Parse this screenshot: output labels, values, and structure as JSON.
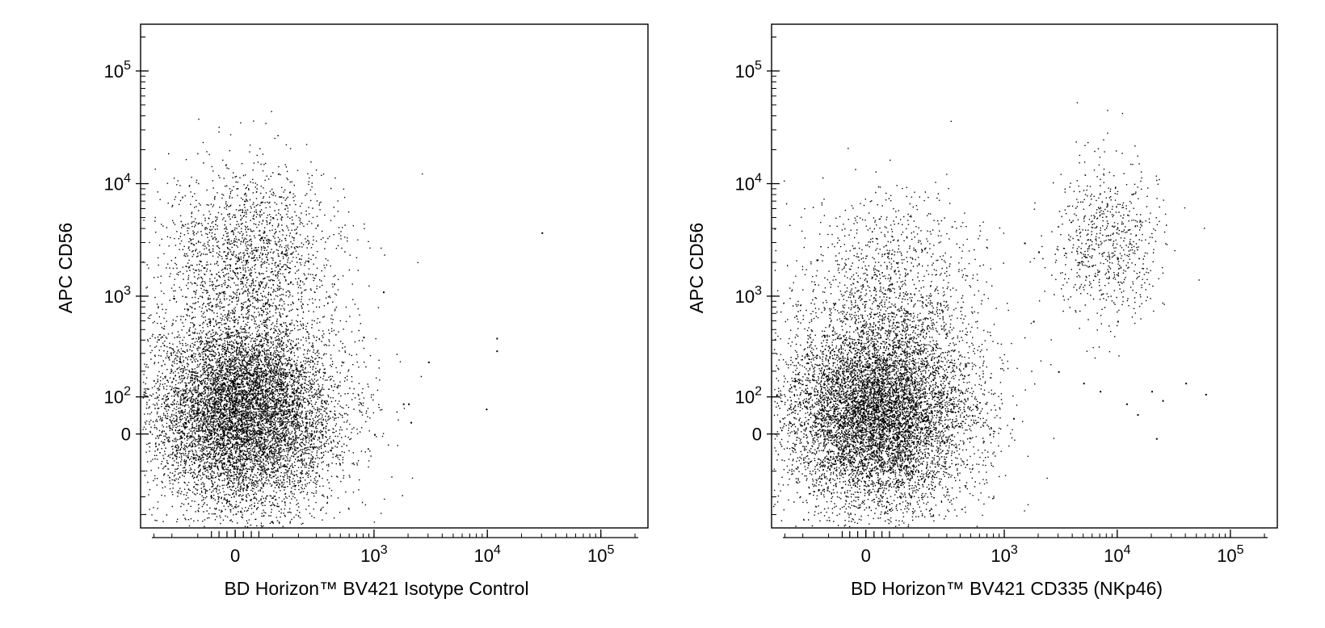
{
  "chart_data": [
    {
      "type": "scatter",
      "title": "",
      "xlabel": "BD Horizon™ BV421 Isotype Control",
      "ylabel": "APC CD56",
      "scale": "biexponential (log-like with linear region around 0)",
      "x_ticks": [
        {
          "value": 0,
          "mantissa": "0",
          "exp": ""
        },
        {
          "value": 1000,
          "mantissa": "10",
          "exp": "3"
        },
        {
          "value": 10000,
          "mantissa": "10",
          "exp": "4"
        },
        {
          "value": 100000,
          "mantissa": "10",
          "exp": "5"
        }
      ],
      "y_ticks": [
        {
          "value": 0,
          "mantissa": "0",
          "exp": ""
        },
        {
          "value": 100,
          "mantissa": "10",
          "exp": "2"
        },
        {
          "value": 1000,
          "mantissa": "10",
          "exp": "3"
        },
        {
          "value": 10000,
          "mantissa": "10",
          "exp": "4"
        },
        {
          "value": 100000,
          "mantissa": "10",
          "exp": "5"
        }
      ],
      "clusters": [
        {
          "name": "",
          "x_center": 20,
          "y_center": 60,
          "count": 9000,
          "density": "dense"
        },
        {
          "name": "",
          "x_center": 30,
          "y_center": 2500,
          "count": 1700,
          "density": "sparse"
        }
      ],
      "outliers": [
        {
          "x": 1200,
          "y": 1100
        },
        {
          "x": 1800,
          "y": 80
        },
        {
          "x": 2000,
          "y": 80
        },
        {
          "x": 2100,
          "y": 30
        },
        {
          "x": 3000,
          "y": 250
        },
        {
          "x": 9700,
          "y": 65
        },
        {
          "x": 12000,
          "y": 420
        },
        {
          "x": 12000,
          "y": 320
        },
        {
          "x": 30000,
          "y": 3700
        },
        {
          "x": 800,
          "y": 430
        },
        {
          "x": 1000,
          "y": 0
        }
      ]
    },
    {
      "type": "scatter",
      "title": "",
      "xlabel": "BD Horizon™ BV421 CD335 (NKp46)",
      "ylabel": "APC CD56",
      "scale": "biexponential (log-like with linear region around 0)",
      "x_ticks": [
        {
          "value": 0,
          "mantissa": "0",
          "exp": ""
        },
        {
          "value": 1000,
          "mantissa": "10",
          "exp": "3"
        },
        {
          "value": 10000,
          "mantissa": "10",
          "exp": "4"
        },
        {
          "value": 100000,
          "mantissa": "10",
          "exp": "5"
        }
      ],
      "y_ticks": [
        {
          "value": 0,
          "mantissa": "0",
          "exp": ""
        },
        {
          "value": 100,
          "mantissa": "10",
          "exp": "2"
        },
        {
          "value": 1000,
          "mantissa": "10",
          "exp": "3"
        },
        {
          "value": 10000,
          "mantissa": "10",
          "exp": "4"
        },
        {
          "value": 100000,
          "mantissa": "10",
          "exp": "5"
        }
      ],
      "clusters": [
        {
          "name": "",
          "x_center": 30,
          "y_center": 60,
          "count": 8500,
          "density": "dense"
        },
        {
          "name": "",
          "x_center": 60,
          "y_center": 1500,
          "count": 900,
          "density": "sparse"
        },
        {
          "name": "",
          "x_center": 8000,
          "y_center": 3000,
          "count": 700,
          "density": "sparse"
        }
      ],
      "outliers": [
        {
          "x": 1500,
          "y": 3000
        },
        {
          "x": 2000,
          "y": 2500
        },
        {
          "x": 3000,
          "y": 200
        },
        {
          "x": 5000,
          "y": 150
        },
        {
          "x": 7000,
          "y": 120
        },
        {
          "x": 10000,
          "y": 600
        },
        {
          "x": 12000,
          "y": 80
        },
        {
          "x": 15000,
          "y": 50
        },
        {
          "x": 20000,
          "y": 120
        },
        {
          "x": 25000,
          "y": 90
        },
        {
          "x": 40000,
          "y": 150
        },
        {
          "x": 60000,
          "y": 110
        },
        {
          "x": 22000,
          "y": -10
        },
        {
          "x": 1200,
          "y": 40
        },
        {
          "x": 1800,
          "y": 600
        }
      ]
    }
  ]
}
